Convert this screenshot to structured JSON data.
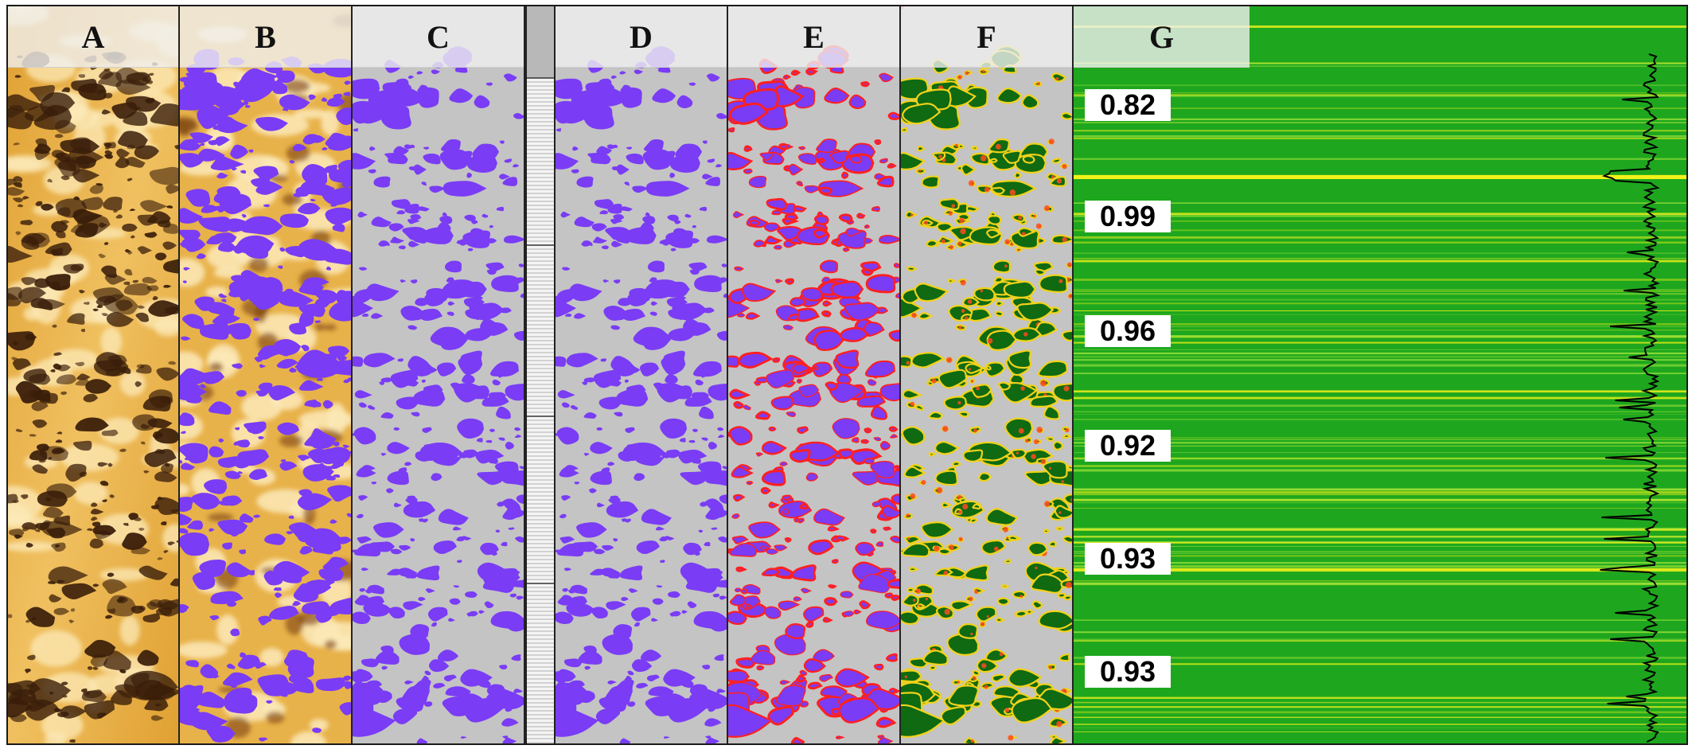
{
  "panels": [
    {
      "id": "A",
      "label": "A",
      "style": "core"
    },
    {
      "id": "B",
      "label": "B",
      "style": "overlay"
    },
    {
      "id": "C",
      "label": "C",
      "style": "purple"
    },
    {
      "id": "D",
      "label": "D",
      "style": "purple"
    },
    {
      "id": "E",
      "label": "E",
      "style": "red"
    },
    {
      "id": "F",
      "label": "F",
      "style": "green"
    },
    {
      "id": "G",
      "label": "G",
      "style": "trace"
    }
  ],
  "trace_labels": [
    "0.82",
    "0.99",
    "0.96",
    "0.92",
    "0.93",
    "0.93"
  ],
  "colors": {
    "core_light": "#fce9b8",
    "core_mid": "#e0a133",
    "core_dark": "#3a1e0a",
    "purple": "#7a3cf5",
    "gray_background": "#c4c4c4",
    "red_edge": "#ff2020",
    "green_dark": "#0f6a12",
    "green_track": "#1ea71e",
    "yellow_band": "#f2f21a"
  }
}
